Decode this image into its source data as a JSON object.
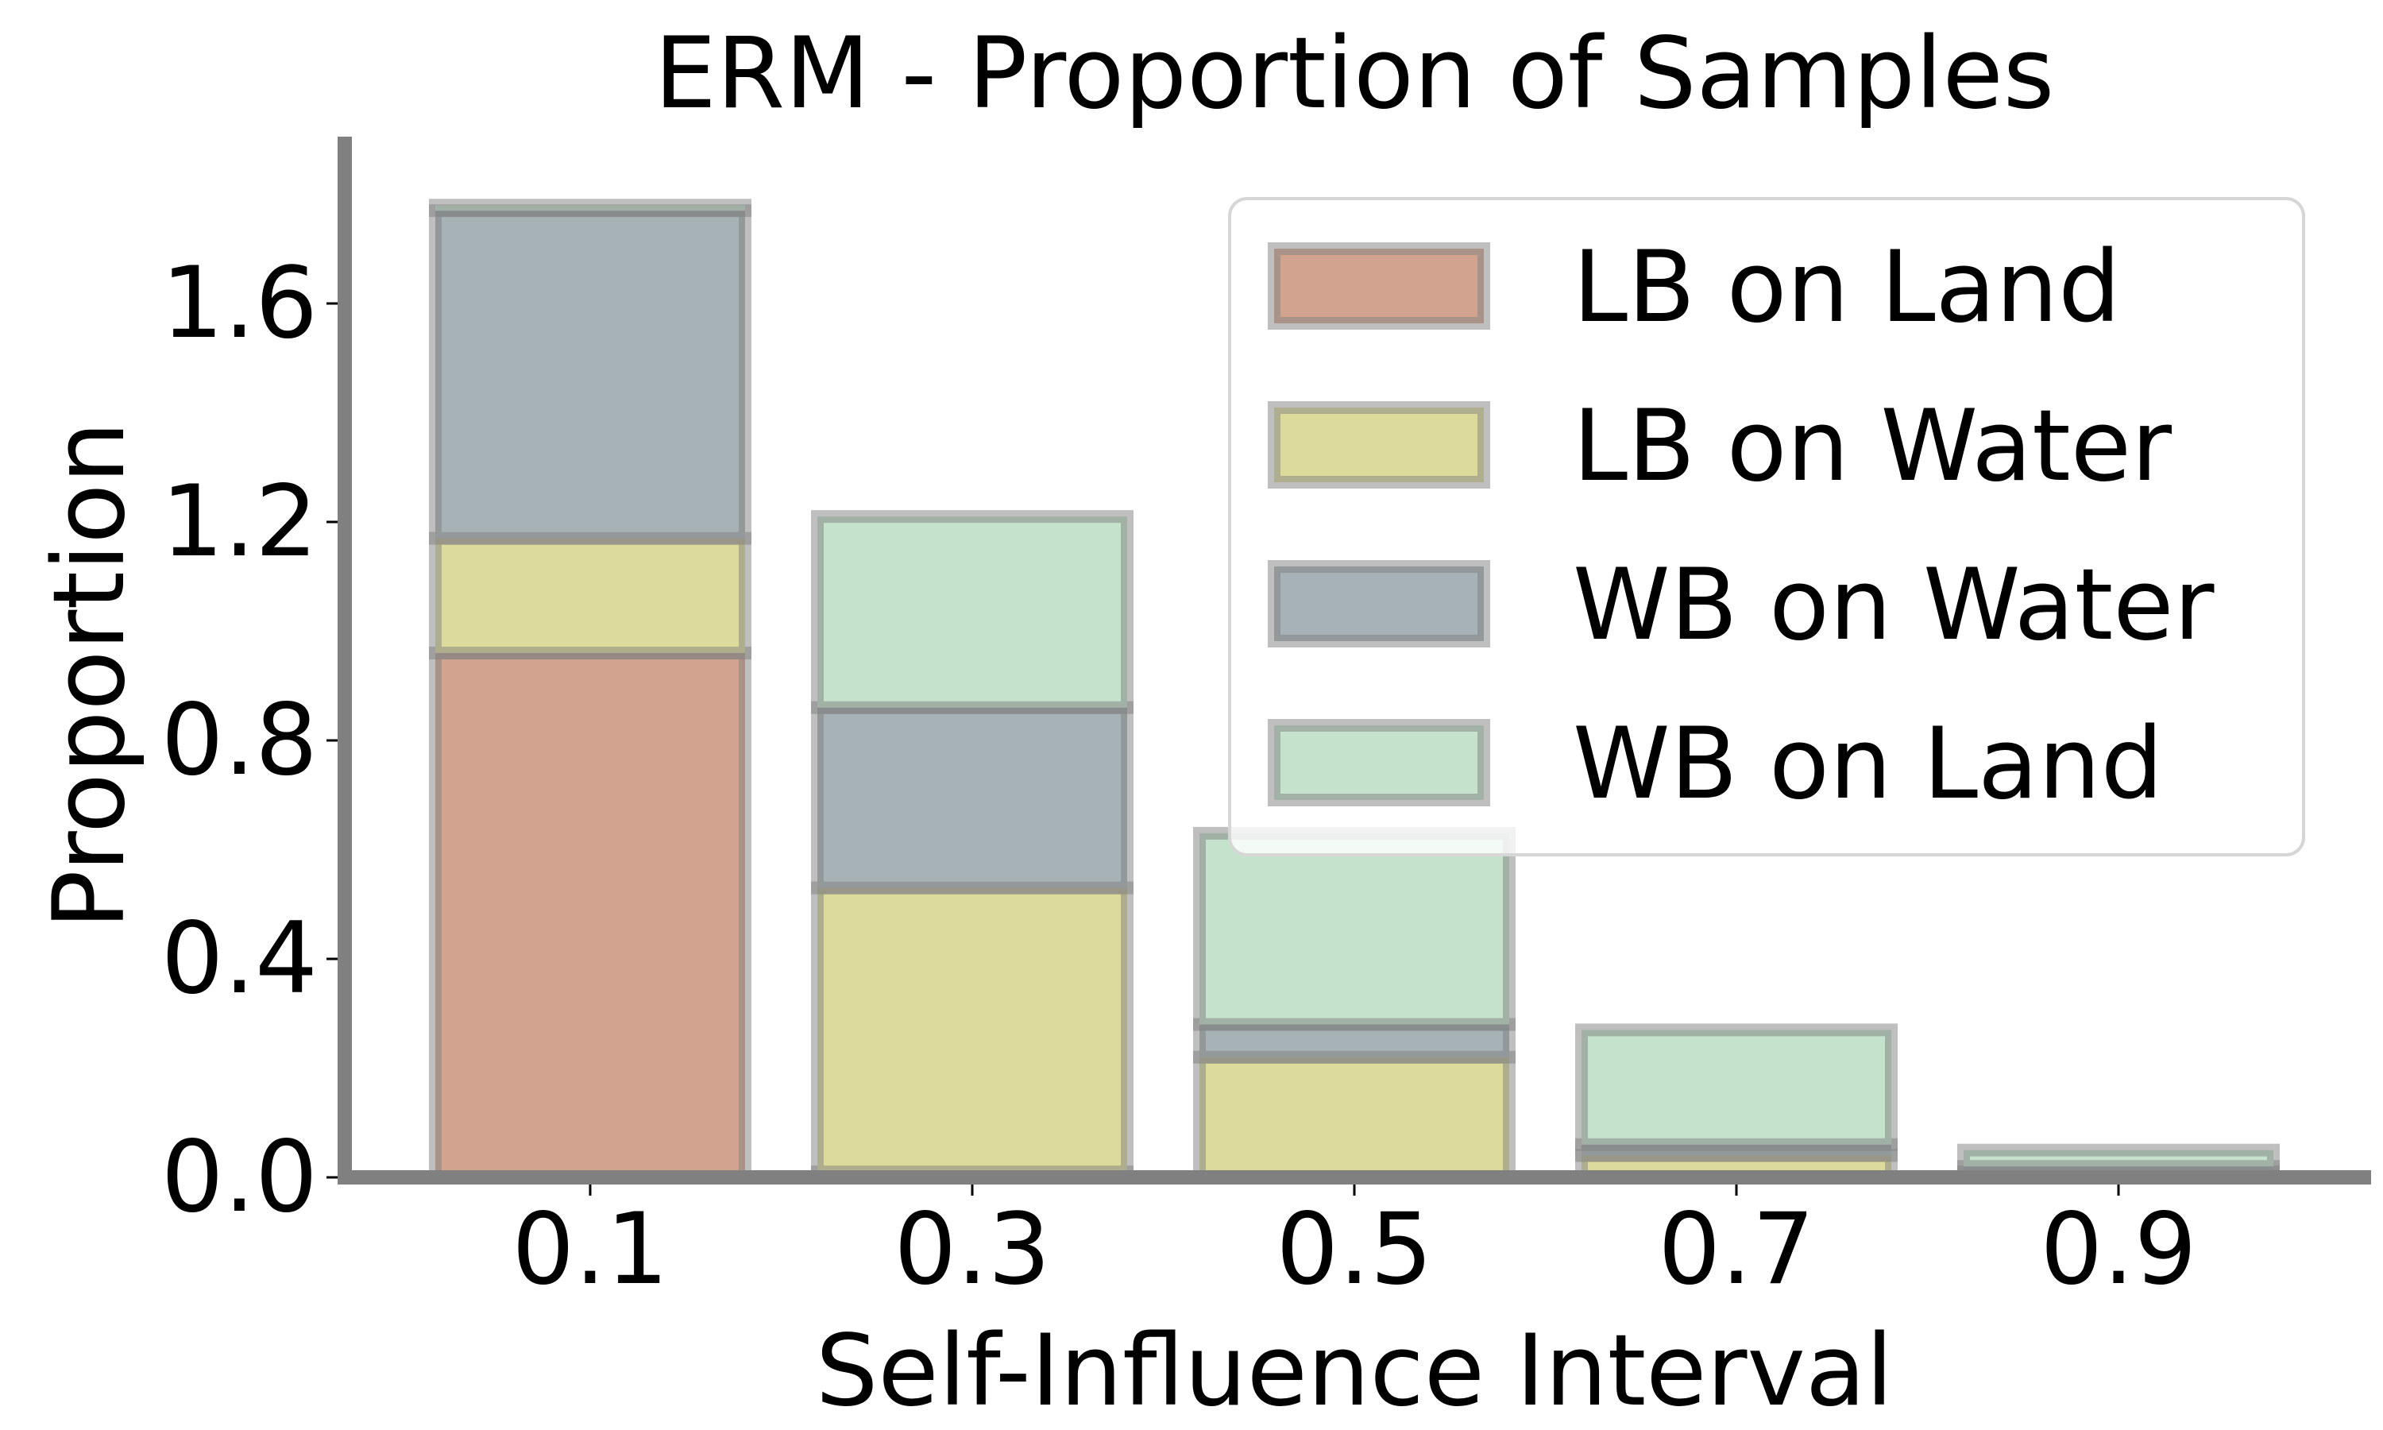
{
  "chart_data": {
    "type": "bar",
    "stacked": true,
    "title": "ERM - Proportion of Samples",
    "xlabel": "Self-Influence Interval",
    "ylabel": "Proportion",
    "categories": [
      "0.1",
      "0.3",
      "0.5",
      "0.7",
      "0.9"
    ],
    "ylim": [
      0,
      1.9
    ],
    "yticks": [
      "0.0",
      "0.4",
      "0.8",
      "1.2",
      "1.6"
    ],
    "grid": false,
    "legend_position": "top-right",
    "series": [
      {
        "name": "LB on Land",
        "color": "#d2a490",
        "values": [
          0.96,
          0.01,
          0.0,
          0.0,
          0.0
        ]
      },
      {
        "name": "LB on Water",
        "color": "#dcdb9c",
        "values": [
          0.21,
          0.52,
          0.22,
          0.04,
          0.01
        ]
      },
      {
        "name": "WB on Water",
        "color": "#a7b2b6",
        "values": [
          0.6,
          0.33,
          0.06,
          0.02,
          0.01
        ]
      },
      {
        "name": "WB on Land",
        "color": "#c5e3cc",
        "values": [
          0.01,
          0.35,
          0.35,
          0.21,
          0.03
        ]
      }
    ]
  }
}
